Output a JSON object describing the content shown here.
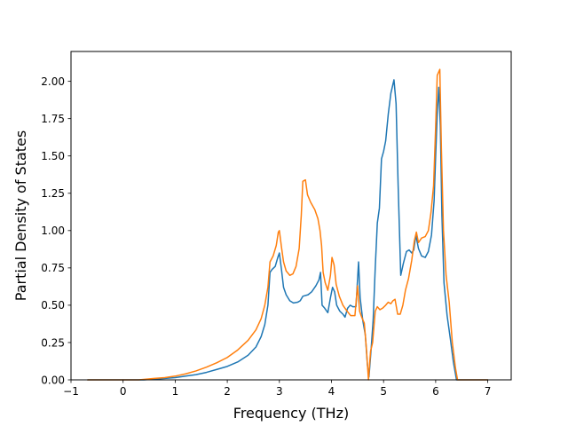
{
  "chart_data": {
    "type": "line",
    "title": "",
    "xlabel": "Frequency (THz)",
    "ylabel": "Partial Density of States",
    "xlim": [
      -1.0,
      7.45
    ],
    "ylim": [
      0.0,
      2.2
    ],
    "xticks": [
      -1,
      0,
      1,
      2,
      3,
      4,
      5,
      6,
      7
    ],
    "xtick_labels": [
      "−1",
      "0",
      "1",
      "2",
      "3",
      "4",
      "5",
      "6",
      "7"
    ],
    "yticks": [
      0.0,
      0.25,
      0.5,
      0.75,
      1.0,
      1.25,
      1.5,
      1.75,
      2.0
    ],
    "ytick_labels": [
      "0.00",
      "0.25",
      "0.50",
      "0.75",
      "1.00",
      "1.25",
      "1.50",
      "1.75",
      "2.00"
    ],
    "grid": false,
    "legend": "none",
    "series": [
      {
        "color": "#1f77b4",
        "points": [
          [
            -0.68,
            0.0
          ],
          [
            0.4,
            0.0
          ],
          [
            0.8,
            0.01
          ],
          [
            1.0,
            0.015
          ],
          [
            1.2,
            0.025
          ],
          [
            1.4,
            0.035
          ],
          [
            1.6,
            0.05
          ],
          [
            1.8,
            0.07
          ],
          [
            2.0,
            0.09
          ],
          [
            2.2,
            0.12
          ],
          [
            2.4,
            0.165
          ],
          [
            2.55,
            0.22
          ],
          [
            2.65,
            0.29
          ],
          [
            2.72,
            0.37
          ],
          [
            2.78,
            0.5
          ],
          [
            2.82,
            0.72
          ],
          [
            2.86,
            0.74
          ],
          [
            2.92,
            0.76
          ],
          [
            2.97,
            0.82
          ],
          [
            3.0,
            0.85
          ],
          [
            3.04,
            0.74
          ],
          [
            3.08,
            0.62
          ],
          [
            3.13,
            0.57
          ],
          [
            3.2,
            0.53
          ],
          [
            3.27,
            0.515
          ],
          [
            3.35,
            0.52
          ],
          [
            3.4,
            0.53
          ],
          [
            3.45,
            0.56
          ],
          [
            3.55,
            0.57
          ],
          [
            3.62,
            0.59
          ],
          [
            3.7,
            0.63
          ],
          [
            3.76,
            0.67
          ],
          [
            3.79,
            0.72
          ],
          [
            3.82,
            0.5
          ],
          [
            3.87,
            0.48
          ],
          [
            3.93,
            0.45
          ],
          [
            3.98,
            0.55
          ],
          [
            4.02,
            0.62
          ],
          [
            4.06,
            0.59
          ],
          [
            4.1,
            0.5
          ],
          [
            4.16,
            0.46
          ],
          [
            4.22,
            0.44
          ],
          [
            4.26,
            0.42
          ],
          [
            4.31,
            0.48
          ],
          [
            4.36,
            0.5
          ],
          [
            4.41,
            0.49
          ],
          [
            4.47,
            0.49
          ],
          [
            4.52,
            0.79
          ],
          [
            4.55,
            0.55
          ],
          [
            4.6,
            0.4
          ],
          [
            4.65,
            0.3
          ],
          [
            4.69,
            0.1
          ],
          [
            4.72,
            0.02
          ],
          [
            4.76,
            0.2
          ],
          [
            4.8,
            0.4
          ],
          [
            4.84,
            0.75
          ],
          [
            4.88,
            1.05
          ],
          [
            4.92,
            1.15
          ],
          [
            4.96,
            1.48
          ],
          [
            5.0,
            1.53
          ],
          [
            5.04,
            1.6
          ],
          [
            5.09,
            1.78
          ],
          [
            5.14,
            1.92
          ],
          [
            5.2,
            2.01
          ],
          [
            5.24,
            1.85
          ],
          [
            5.28,
            1.3
          ],
          [
            5.33,
            0.7
          ],
          [
            5.38,
            0.78
          ],
          [
            5.44,
            0.86
          ],
          [
            5.49,
            0.87
          ],
          [
            5.54,
            0.85
          ],
          [
            5.58,
            0.87
          ],
          [
            5.62,
            0.97
          ],
          [
            5.67,
            0.88
          ],
          [
            5.73,
            0.83
          ],
          [
            5.8,
            0.82
          ],
          [
            5.86,
            0.86
          ],
          [
            5.92,
            0.97
          ],
          [
            5.97,
            1.2
          ],
          [
            6.0,
            1.5
          ],
          [
            6.03,
            1.78
          ],
          [
            6.06,
            1.96
          ],
          [
            6.09,
            1.7
          ],
          [
            6.12,
            1.1
          ],
          [
            6.16,
            0.65
          ],
          [
            6.22,
            0.43
          ],
          [
            6.28,
            0.28
          ],
          [
            6.34,
            0.12
          ],
          [
            6.4,
            0.0
          ],
          [
            7.0,
            0.0
          ]
        ]
      },
      {
        "color": "#ff7f0e",
        "points": [
          [
            -0.68,
            0.0
          ],
          [
            0.3,
            0.0
          ],
          [
            0.6,
            0.01
          ],
          [
            0.8,
            0.015
          ],
          [
            1.0,
            0.025
          ],
          [
            1.2,
            0.04
          ],
          [
            1.4,
            0.06
          ],
          [
            1.6,
            0.085
          ],
          [
            1.8,
            0.115
          ],
          [
            2.0,
            0.15
          ],
          [
            2.2,
            0.2
          ],
          [
            2.4,
            0.265
          ],
          [
            2.55,
            0.335
          ],
          [
            2.65,
            0.41
          ],
          [
            2.72,
            0.5
          ],
          [
            2.78,
            0.62
          ],
          [
            2.82,
            0.79
          ],
          [
            2.88,
            0.83
          ],
          [
            2.94,
            0.9
          ],
          [
            2.98,
            0.99
          ],
          [
            3.0,
            1.0
          ],
          [
            3.04,
            0.89
          ],
          [
            3.08,
            0.79
          ],
          [
            3.13,
            0.73
          ],
          [
            3.2,
            0.7
          ],
          [
            3.26,
            0.71
          ],
          [
            3.32,
            0.76
          ],
          [
            3.38,
            0.88
          ],
          [
            3.42,
            1.1
          ],
          [
            3.45,
            1.33
          ],
          [
            3.5,
            1.34
          ],
          [
            3.54,
            1.24
          ],
          [
            3.6,
            1.19
          ],
          [
            3.68,
            1.14
          ],
          [
            3.74,
            1.08
          ],
          [
            3.78,
            1.0
          ],
          [
            3.81,
            0.9
          ],
          [
            3.84,
            0.72
          ],
          [
            3.88,
            0.65
          ],
          [
            3.93,
            0.6
          ],
          [
            3.98,
            0.7
          ],
          [
            4.01,
            0.82
          ],
          [
            4.05,
            0.77
          ],
          [
            4.09,
            0.64
          ],
          [
            4.15,
            0.56
          ],
          [
            4.22,
            0.5
          ],
          [
            4.3,
            0.46
          ],
          [
            4.37,
            0.43
          ],
          [
            4.45,
            0.43
          ],
          [
            4.5,
            0.63
          ],
          [
            4.54,
            0.46
          ],
          [
            4.58,
            0.42
          ],
          [
            4.63,
            0.38
          ],
          [
            4.67,
            0.21
          ],
          [
            4.71,
            0.0
          ],
          [
            4.75,
            0.19
          ],
          [
            4.79,
            0.25
          ],
          [
            4.84,
            0.46
          ],
          [
            4.88,
            0.49
          ],
          [
            4.93,
            0.47
          ],
          [
            4.98,
            0.48
          ],
          [
            5.04,
            0.5
          ],
          [
            5.09,
            0.52
          ],
          [
            5.14,
            0.51
          ],
          [
            5.18,
            0.53
          ],
          [
            5.22,
            0.54
          ],
          [
            5.27,
            0.44
          ],
          [
            5.32,
            0.44
          ],
          [
            5.37,
            0.5
          ],
          [
            5.42,
            0.6
          ],
          [
            5.48,
            0.68
          ],
          [
            5.54,
            0.8
          ],
          [
            5.59,
            0.93
          ],
          [
            5.63,
            0.99
          ],
          [
            5.67,
            0.92
          ],
          [
            5.73,
            0.95
          ],
          [
            5.8,
            0.96
          ],
          [
            5.86,
            1.0
          ],
          [
            5.91,
            1.12
          ],
          [
            5.96,
            1.3
          ],
          [
            6.0,
            1.7
          ],
          [
            6.03,
            2.04
          ],
          [
            6.08,
            2.08
          ],
          [
            6.11,
            1.55
          ],
          [
            6.15,
            1.0
          ],
          [
            6.2,
            0.7
          ],
          [
            6.26,
            0.52
          ],
          [
            6.32,
            0.25
          ],
          [
            6.38,
            0.08
          ],
          [
            6.42,
            0.0
          ],
          [
            7.0,
            0.0
          ]
        ]
      }
    ]
  }
}
